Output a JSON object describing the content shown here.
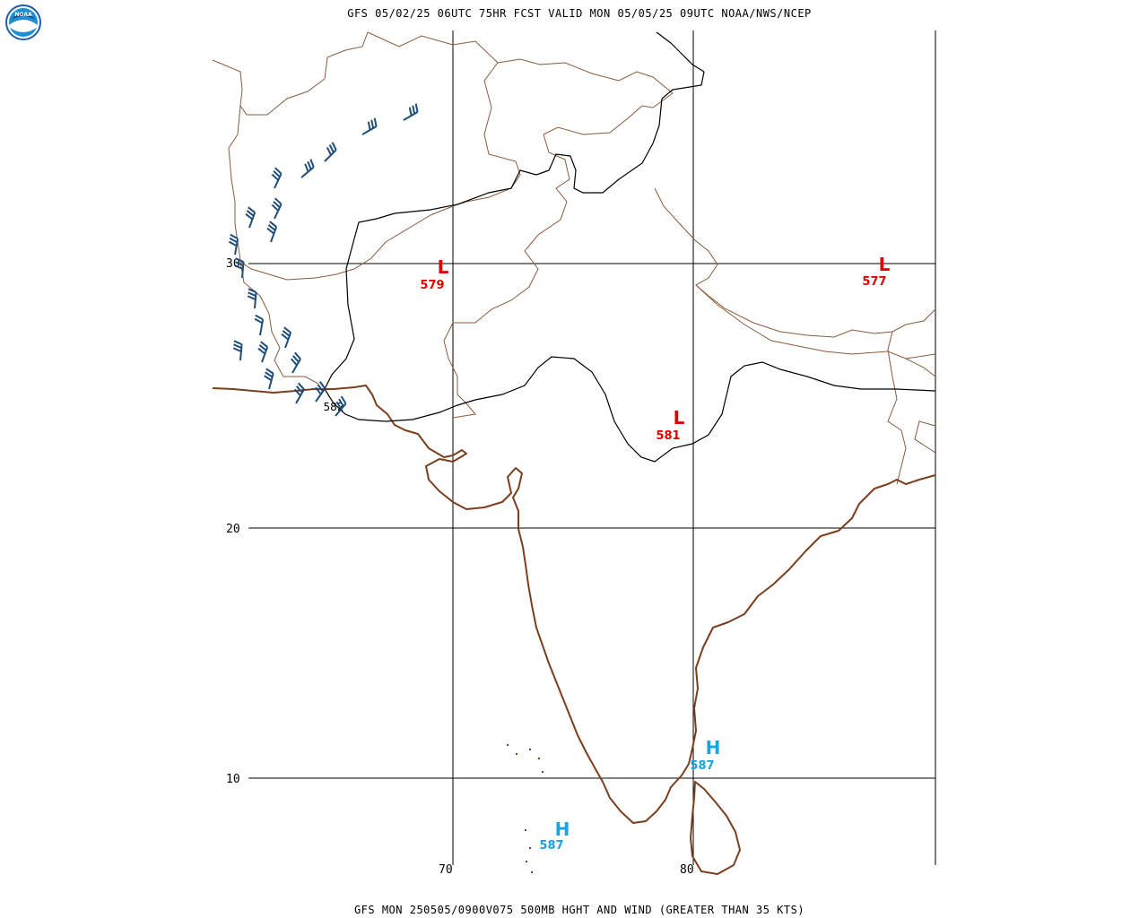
{
  "header": {
    "top_title": "GFS 05/02/25 06UTC 75HR FCST VALID MON 05/05/25 09UTC NOAA/NWS/NCEP",
    "bottom_title": "GFS MON 250505/0900V075 500MB HGHT AND WIND (GREATER THAN 35 KTS)",
    "logo_icon": "noaa-logo-icon",
    "logo_text": "NOAA"
  },
  "map": {
    "region": "South Asia",
    "grid": {
      "lat_labels": [
        "30",
        "20",
        "10"
      ],
      "lon_labels": [
        "70",
        "80"
      ]
    },
    "colors": {
      "coastline": "#7a3f1e",
      "boundary": "#8b5a3c",
      "contour": "#000000",
      "wind_barb": "#1f4e79",
      "low": "#e00000",
      "high": "#19a4e0"
    },
    "contour_labels": [
      "582"
    ],
    "systems": [
      {
        "type": "L",
        "value": "579"
      },
      {
        "type": "L",
        "value": "577"
      },
      {
        "type": "L",
        "value": "581"
      },
      {
        "type": "H",
        "value": "587"
      },
      {
        "type": "H",
        "value": "587"
      }
    ]
  }
}
